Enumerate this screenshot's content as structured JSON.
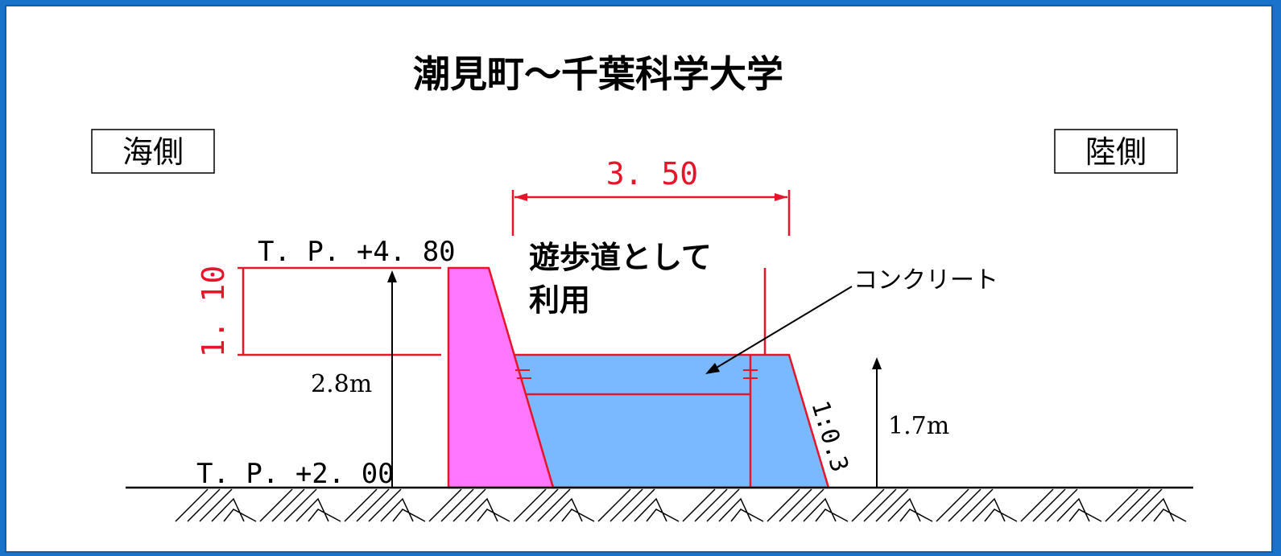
{
  "title": "潮見町～千葉科学大学",
  "labels": {
    "sea_side": "海側",
    "land_side": "陸側",
    "walkway": [
      "遊歩道として",
      "利用"
    ],
    "concrete": "コンクリート",
    "tp_top": "T. P. +4. 80",
    "tp_bottom": "T. P. +2. 00",
    "height_total": "2.8m",
    "height_wall": "1.7m",
    "slope": "1:0.3",
    "dim_width": "3. 50",
    "dim_height": "1. 10"
  },
  "colors": {
    "background": "#1a73c8",
    "panel": "#ffffff",
    "red": "#e8142a",
    "magenta": "#ff77ff",
    "blue_fill": "#7ab8ff",
    "black": "#000000"
  }
}
